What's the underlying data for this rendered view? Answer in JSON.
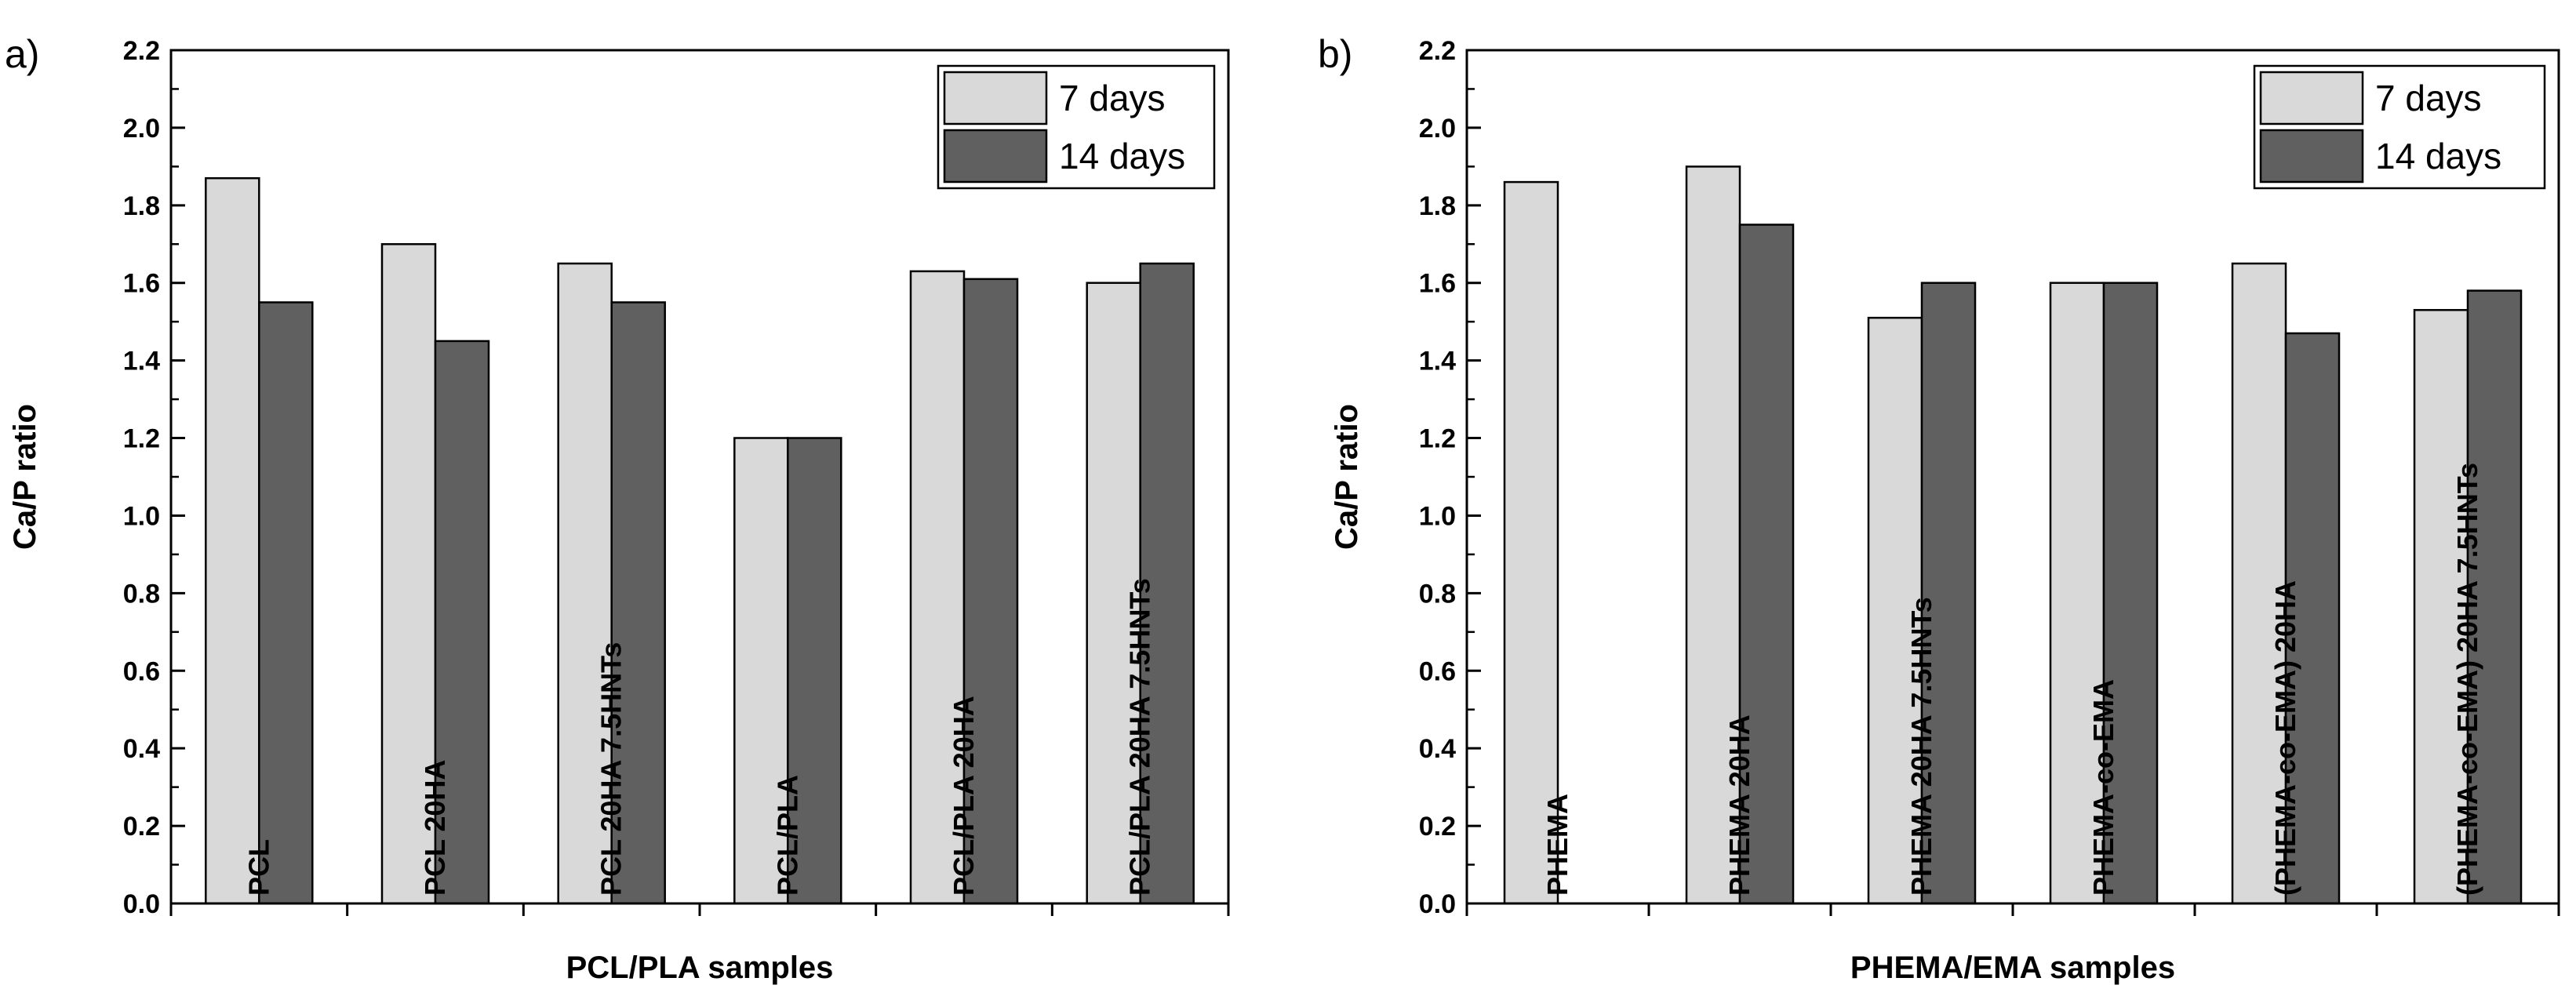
{
  "chart_data": [
    {
      "type": "bar",
      "panel_label": "a)",
      "title": "",
      "xlabel": "PCL/PLA samples",
      "ylabel": "Ca/P ratio",
      "ylim": [
        0,
        2.2
      ],
      "yticks": [
        "0.0",
        "0.2",
        "0.4",
        "0.6",
        "0.8",
        "1.0",
        "1.2",
        "1.4",
        "1.6",
        "1.8",
        "2.0",
        "2.2"
      ],
      "categories": [
        "PCL",
        "PCL 20HA",
        "PCL 20HA 7.5HNTs",
        "PCL/PLA",
        "PCL/PLA 20HA",
        "PCL/PLA 20HA 7.5HNTs"
      ],
      "series": [
        {
          "name": "7 days",
          "color": "#d9d9d9",
          "values": [
            1.87,
            1.7,
            1.65,
            1.2,
            1.63,
            1.6
          ]
        },
        {
          "name": "14 days",
          "color": "#606060",
          "values": [
            1.55,
            1.45,
            1.55,
            1.2,
            1.61,
            1.65
          ]
        }
      ],
      "legend": "top-right"
    },
    {
      "type": "bar",
      "panel_label": "b)",
      "title": "",
      "xlabel": "PHEMA/EMA samples",
      "ylabel": "Ca/P ratio",
      "ylim": [
        0,
        2.2
      ],
      "yticks": [
        "0.0",
        "0.2",
        "0.4",
        "0.6",
        "0.8",
        "1.0",
        "1.2",
        "1.4",
        "1.6",
        "1.8",
        "2.0",
        "2.2"
      ],
      "categories": [
        "PHEMA",
        "PHEMA 20HA",
        "PHEMA 20HA 7.5HNTs",
        "PHEMA-co-EMA",
        "(PHEMA-co-EMA) 20HA",
        "(PHEMA-co-EMA) 20HA 7.5HNTs"
      ],
      "series": [
        {
          "name": "7 days",
          "color": "#d9d9d9",
          "values": [
            1.86,
            1.9,
            1.51,
            1.6,
            1.65,
            1.53
          ]
        },
        {
          "name": "14 days",
          "color": "#606060",
          "values": [
            0,
            1.75,
            1.6,
            1.6,
            1.47,
            1.58
          ]
        }
      ],
      "legend": "top-right"
    }
  ]
}
